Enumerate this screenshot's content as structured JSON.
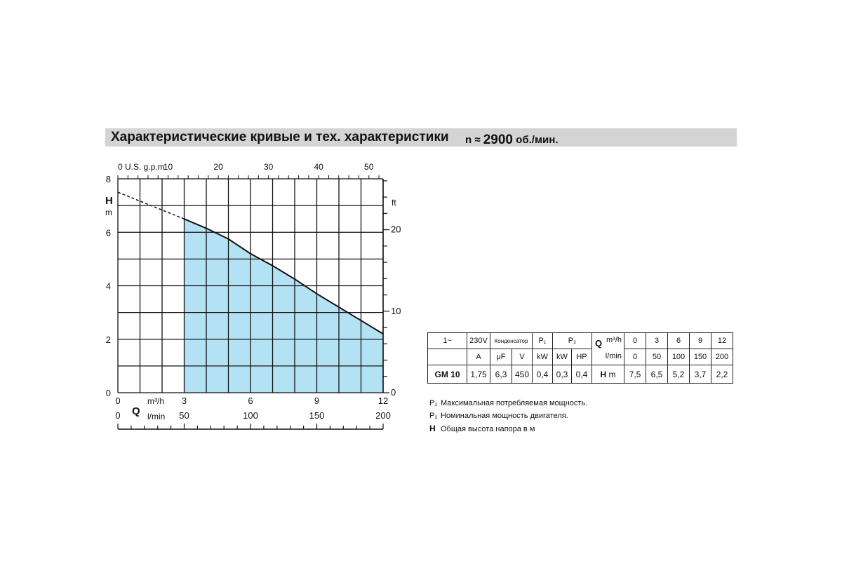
{
  "header": {
    "title": "Характеристические кривые и тех. характеристики",
    "speed_prefix": "n ≈ ",
    "speed_value": "2900",
    "speed_unit": " об./мин."
  },
  "chart_data": {
    "type": "line",
    "curve": {
      "x": [
        0,
        3,
        4,
        5,
        6,
        7,
        8,
        9,
        10,
        11,
        12
      ],
      "y": [
        7.5,
        6.5,
        6.15,
        5.75,
        5.2,
        4.75,
        4.25,
        3.7,
        3.2,
        2.7,
        2.2
      ],
      "dashed_until_x": 3,
      "shaded_from_x": 3,
      "shade_color": "#b4e2f5"
    },
    "xlim": [
      0,
      12
    ],
    "ylim": [
      0,
      8
    ],
    "left_axis": {
      "label": "H",
      "unit": "m",
      "ticks": [
        "8",
        "6",
        "4",
        "2",
        "0"
      ]
    },
    "right_axis": {
      "unit": "ft",
      "ticks": [
        "20",
        "10",
        "0"
      ]
    },
    "top_axis": {
      "label": "0 U.S. g.p.m.",
      "ticks": [
        "10",
        "20",
        "30",
        "40",
        "50"
      ]
    },
    "bottom_axes": {
      "q_label": "Q",
      "m3h": {
        "unit": "m³/h",
        "ticks": [
          "0",
          "3",
          "6",
          "9",
          "12"
        ]
      },
      "lmin": {
        "unit": "l/min",
        "ticks": [
          "0",
          "50",
          "100",
          "150",
          "200"
        ]
      }
    },
    "grid": true
  },
  "spec": {
    "h_phase": "1~",
    "h_voltage": "230V",
    "h_cond": "Конденсатор",
    "h_p1": "P₁",
    "h_p2": "P₂",
    "u_a": "A",
    "u_uf": "μF",
    "u_v": "V",
    "u_kw1": "kW",
    "u_kw2": "kW",
    "u_hp": "HP",
    "q_label": "Q",
    "q_unit_m3h": "m³/h",
    "q_unit_lmin": "l/min",
    "q_m3h": [
      "0",
      "3",
      "6",
      "9",
      "12"
    ],
    "q_lmin": [
      "0",
      "50",
      "100",
      "150",
      "200"
    ],
    "model": "GM 10",
    "amp": "1,75",
    "uf": "6,3",
    "volt": "450",
    "p1": "0,4",
    "p2_kw": "0,3",
    "p2_hp": "0,4",
    "h_label": "H",
    "h_unit": "m",
    "heads": [
      "7,5",
      "6,5",
      "5,2",
      "3,7",
      "2,2"
    ]
  },
  "notes": [
    {
      "key": "P₁",
      "text": "Максимальная потребляемая мощность."
    },
    {
      "key": "P₂",
      "text": "Номинальная мощность двигателя."
    },
    {
      "key": "H",
      "text": "Общая высота напора в м"
    }
  ]
}
